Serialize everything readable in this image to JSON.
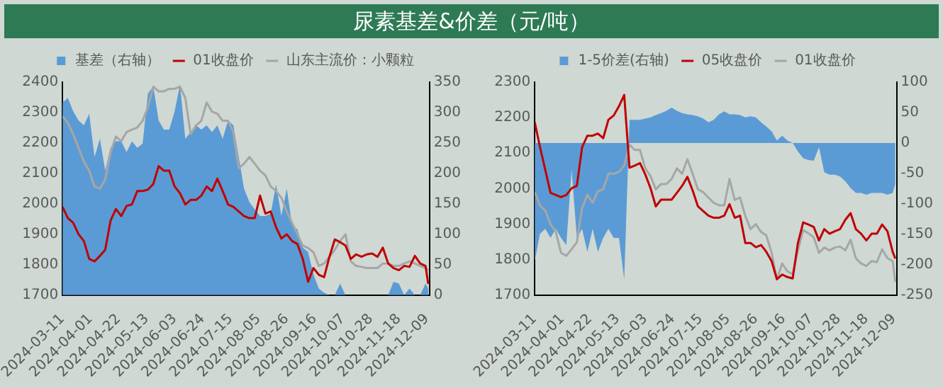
{
  "chart_data": [
    {
      "type": "line",
      "title": "尿素基差&价差（元/吨）",
      "legend": "top",
      "grid": false,
      "marker": "none",
      "x": [
        "2024-03-11",
        "2024-03-15",
        "2024-03-19",
        "2024-03-23",
        "2024-03-27",
        "2024-03-31",
        "2024-04-04",
        "2024-04-08",
        "2024-04-12",
        "2024-04-16",
        "2024-04-20",
        "2024-04-24",
        "2024-04-28",
        "2024-05-02",
        "2024-05-06",
        "2024-05-10",
        "2024-05-14",
        "2024-05-18",
        "2024-05-22",
        "2024-05-26",
        "2024-05-30",
        "2024-06-03",
        "2024-06-07",
        "2024-06-11",
        "2024-06-15",
        "2024-06-19",
        "2024-06-23",
        "2024-06-27",
        "2024-07-01",
        "2024-07-05",
        "2024-07-09",
        "2024-07-13",
        "2024-07-17",
        "2024-07-21",
        "2024-07-25",
        "2024-07-29",
        "2024-08-02",
        "2024-08-06",
        "2024-08-10",
        "2024-08-14",
        "2024-08-18",
        "2024-08-22",
        "2024-08-26",
        "2024-08-30",
        "2024-09-03",
        "2024-09-07",
        "2024-09-11",
        "2024-09-15",
        "2024-09-19",
        "2024-09-23",
        "2024-09-27",
        "2024-10-01",
        "2024-10-05",
        "2024-10-09",
        "2024-10-13",
        "2024-10-17",
        "2024-10-21",
        "2024-10-25",
        "2024-10-29",
        "2024-11-02",
        "2024-11-06",
        "2024-11-10",
        "2024-11-14",
        "2024-11-18",
        "2024-11-22",
        "2024-11-26",
        "2024-11-30",
        "2024-12-04",
        "2024-12-08",
        "2024-12-10"
      ],
      "xlim": [
        "2024-03-11",
        "2024-12-11"
      ],
      "xticks": [
        "2024-03-11",
        "2024-04-01",
        "2024-04-22",
        "2024-05-13",
        "2024-06-03",
        "2024-06-24",
        "2024-07-15",
        "2024-08-05",
        "2024-08-26",
        "2024-09-16",
        "2024-10-07",
        "2024-10-28",
        "2024-11-18",
        "2024-12-09"
      ],
      "ylim": [
        1700,
        2400
      ],
      "yticks": [
        1700,
        1800,
        1900,
        2000,
        2100,
        2200,
        2300,
        2400
      ],
      "y2lim": [
        0,
        350
      ],
      "y2ticks": [
        0,
        50,
        100,
        150,
        200,
        250,
        300,
        350
      ],
      "series": [
        {
          "name": "基差（右轴）",
          "type": "area",
          "axis": "y2",
          "color": "#5b9bd5",
          "values": [
            316,
            324,
            302,
            287,
            279,
            298,
            227,
            257,
            205,
            242,
            253,
            253,
            235,
            253,
            242,
            249,
            331,
            343,
            287,
            272,
            272,
            302,
            346,
            257,
            268,
            279,
            272,
            279,
            268,
            279,
            257,
            287,
            279,
            227,
            175,
            153,
            141,
            130,
            130,
            134,
            182,
            130,
            175,
            115,
            108,
            78,
            71,
            34,
            11,
            4,
            0,
            0,
            19,
            0,
            0,
            0,
            0,
            0,
            0,
            0,
            0,
            0,
            22,
            19,
            0,
            11,
            0,
            0,
            19,
            11
          ]
        },
        {
          "name": "01收盘价",
          "type": "line",
          "color": "#c00000",
          "values": [
            1990,
            1953,
            1938,
            1900,
            1878,
            1819,
            1811,
            1829,
            1849,
            1945,
            1983,
            1960,
            1993,
            1998,
            2042,
            2042,
            2047,
            2065,
            2124,
            2109,
            2109,
            2057,
            2035,
            1998,
            2013,
            2013,
            2027,
            2057,
            2042,
            2083,
            2042,
            1998,
            1990,
            1975,
            1960,
            1953,
            1953,
            2027,
            1968,
            1975,
            1923,
            1886,
            1900,
            1878,
            1868,
            1819,
            1744,
            1789,
            1767,
            1759,
            1826,
            1883,
            1874,
            1863,
            1819,
            1834,
            1826,
            1834,
            1837,
            1826,
            1856,
            1804,
            1789,
            1782,
            1796,
            1793,
            1829,
            1804,
            1796,
            1737
          ]
        },
        {
          "name": "山东主流价：小颗粒",
          "type": "line",
          "color": "#a6a6a6",
          "values": [
            2288,
            2266,
            2229,
            2184,
            2139,
            2109,
            2057,
            2050,
            2080,
            2169,
            2221,
            2206,
            2236,
            2244,
            2251,
            2273,
            2318,
            2385,
            2370,
            2370,
            2378,
            2378,
            2385,
            2348,
            2229,
            2258,
            2273,
            2333,
            2303,
            2296,
            2273,
            2273,
            2236,
            2117,
            2132,
            2154,
            2132,
            2109,
            2094,
            2057,
            2042,
            2020,
            1975,
            1938,
            1900,
            1863,
            1855,
            1841,
            1796,
            1804,
            1826,
            1849,
            1878,
            1900,
            1811,
            1796,
            1793,
            1789,
            1789,
            1789,
            1804,
            1804,
            1796,
            1796,
            1804,
            1811,
            1804,
            1796,
            1789,
            1782
          ]
        }
      ]
    },
    {
      "type": "line",
      "legend": "top",
      "grid": false,
      "marker": "none",
      "x": [
        "2024-03-11",
        "2024-03-15",
        "2024-03-19",
        "2024-03-23",
        "2024-03-27",
        "2024-03-31",
        "2024-04-04",
        "2024-04-08",
        "2024-04-12",
        "2024-04-16",
        "2024-04-20",
        "2024-04-24",
        "2024-04-28",
        "2024-05-02",
        "2024-05-06",
        "2024-05-10",
        "2024-05-14",
        "2024-05-18",
        "2024-05-22",
        "2024-05-26",
        "2024-05-30",
        "2024-06-03",
        "2024-06-07",
        "2024-06-11",
        "2024-06-15",
        "2024-06-19",
        "2024-06-23",
        "2024-06-27",
        "2024-07-01",
        "2024-07-05",
        "2024-07-09",
        "2024-07-13",
        "2024-07-17",
        "2024-07-21",
        "2024-07-25",
        "2024-07-29",
        "2024-08-02",
        "2024-08-06",
        "2024-08-10",
        "2024-08-14",
        "2024-08-18",
        "2024-08-22",
        "2024-08-26",
        "2024-08-30",
        "2024-09-03",
        "2024-09-07",
        "2024-09-11",
        "2024-09-15",
        "2024-09-19",
        "2024-09-23",
        "2024-09-27",
        "2024-10-01",
        "2024-10-05",
        "2024-10-09",
        "2024-10-13",
        "2024-10-17",
        "2024-10-21",
        "2024-10-25",
        "2024-10-29",
        "2024-11-02",
        "2024-11-06",
        "2024-11-10",
        "2024-11-14",
        "2024-11-18",
        "2024-11-22",
        "2024-11-26",
        "2024-11-30",
        "2024-12-04",
        "2024-12-08",
        "2024-12-10"
      ],
      "xlim": [
        "2024-03-11",
        "2024-12-11"
      ],
      "xticks": [
        "2024-03-11",
        "2024-04-01",
        "2024-04-22",
        "2024-05-13",
        "2024-06-03",
        "2024-06-24",
        "2024-07-15",
        "2024-08-05",
        "2024-08-26",
        "2024-09-16",
        "2024-10-07",
        "2024-10-28",
        "2024-11-18",
        "2024-12-09"
      ],
      "ylim": [
        1700,
        2300
      ],
      "yticks": [
        1700,
        1800,
        1900,
        2000,
        2100,
        2200,
        2300
      ],
      "y2lim": [
        -250,
        100
      ],
      "y2ticks": [
        -250,
        -200,
        -150,
        -100,
        -50,
        0,
        50,
        100
      ],
      "series": [
        {
          "name": "1-5价差(右轴)",
          "type": "area",
          "axis": "y2",
          "color": "#5b9bd5",
          "values": [
            -194,
            -149,
            -141,
            -156,
            -141,
            -156,
            -168,
            -44,
            -156,
            -141,
            -179,
            -141,
            -179,
            -156,
            -141,
            -156,
            -156,
            -224,
            38,
            38,
            38,
            40,
            42,
            46,
            49,
            53,
            58,
            53,
            49,
            47,
            46,
            44,
            40,
            34,
            38,
            47,
            52,
            47,
            47,
            46,
            42,
            44,
            42,
            34,
            27,
            19,
            4,
            12,
            4,
            0,
            -14,
            -25,
            -28,
            -29,
            -7,
            -48,
            -52,
            -52,
            -55,
            -63,
            -74,
            -82,
            -82,
            -85,
            -82,
            -82,
            -82,
            -85,
            -82,
            -67
          ]
        },
        {
          "name": "05收盘价",
          "type": "line",
          "color": "#c00000",
          "values": [
            2187,
            2117,
            2053,
            1988,
            1982,
            1976,
            1982,
            2001,
            2008,
            2117,
            2149,
            2149,
            2155,
            2142,
            2194,
            2206,
            2232,
            2264,
            2059,
            2065,
            2072,
            2040,
            2001,
            1950,
            1969,
            1969,
            1969,
            1988,
            2008,
            2033,
            1995,
            1950,
            1937,
            1924,
            1918,
            1918,
            1924,
            1956,
            1918,
            1924,
            1847,
            1847,
            1835,
            1841,
            1822,
            1796,
            1745,
            1758,
            1751,
            1747,
            1847,
            1905,
            1899,
            1892,
            1854,
            1886,
            1873,
            1880,
            1886,
            1912,
            1931,
            1886,
            1873,
            1854,
            1873,
            1873,
            1899,
            1880,
            1822,
            1803
          ]
        },
        {
          "name": "01收盘价",
          "type": "line",
          "color": "#a6a6a6",
          "values": [
            1990,
            1953,
            1938,
            1900,
            1878,
            1819,
            1811,
            1829,
            1849,
            1945,
            1983,
            1960,
            1993,
            1998,
            2042,
            2042,
            2047,
            2065,
            2124,
            2109,
            2109,
            2057,
            2035,
            1998,
            2013,
            2013,
            2027,
            2057,
            2042,
            2083,
            2042,
            1998,
            1990,
            1975,
            1960,
            1953,
            1953,
            2027,
            1968,
            1975,
            1923,
            1886,
            1900,
            1878,
            1868,
            1819,
            1744,
            1789,
            1767,
            1759,
            1826,
            1883,
            1874,
            1863,
            1819,
            1834,
            1826,
            1834,
            1837,
            1826,
            1856,
            1804,
            1789,
            1782,
            1796,
            1793,
            1829,
            1804,
            1796,
            1737
          ]
        }
      ]
    }
  ]
}
